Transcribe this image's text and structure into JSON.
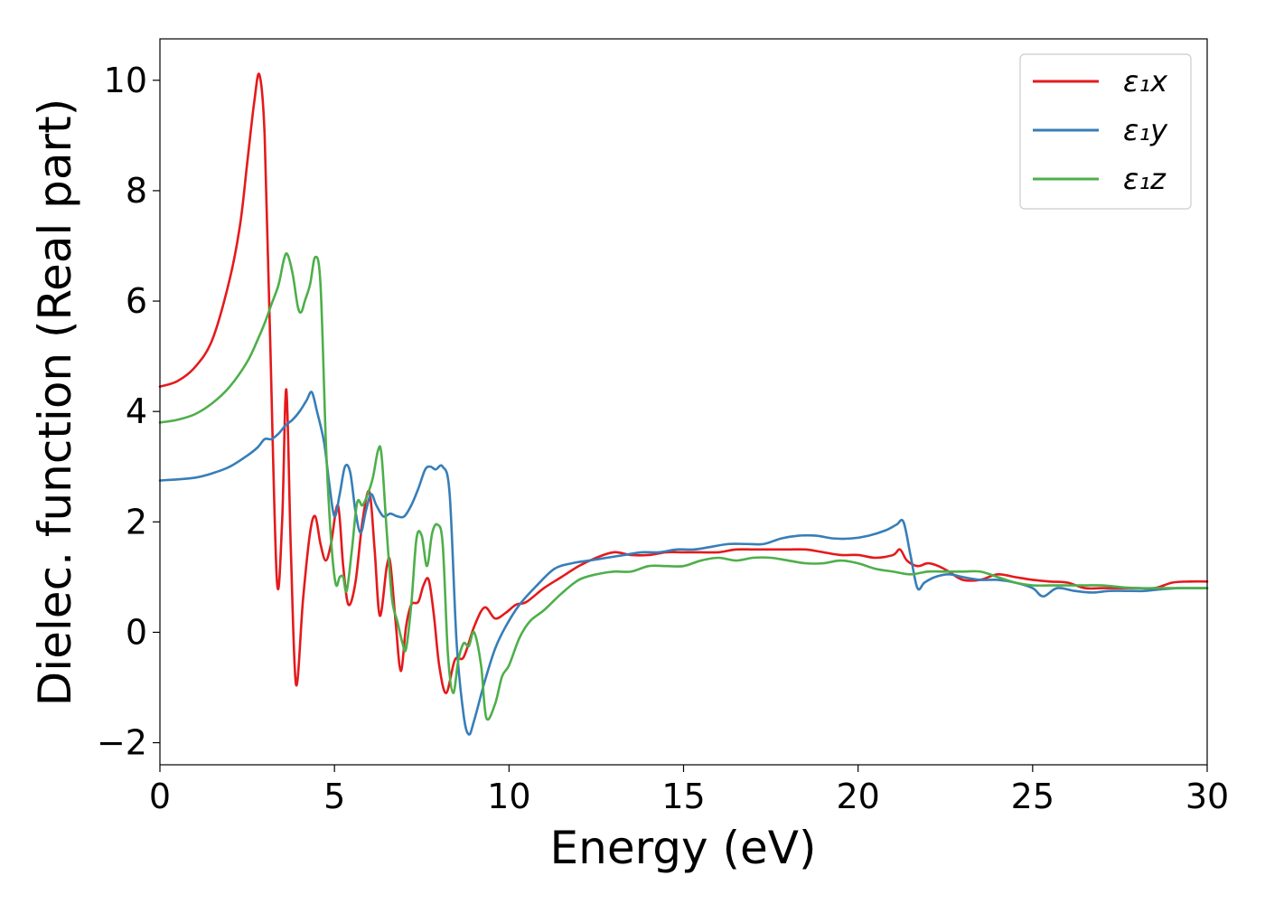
{
  "chart_data": {
    "type": "line",
    "title": "",
    "xlabel": "Energy (eV)",
    "ylabel": "Dielec. function (Real part)",
    "xlim": [
      0,
      30
    ],
    "ylim": [
      -2.4,
      10.75
    ],
    "xticks": [
      0,
      5,
      10,
      15,
      20,
      25,
      30
    ],
    "yticks": [
      -2,
      0,
      2,
      4,
      6,
      8,
      10
    ],
    "xtick_labels": [
      "0",
      "5",
      "10",
      "15",
      "20",
      "25",
      "30"
    ],
    "ytick_labels": [
      "−2",
      "0",
      "2",
      "4",
      "6",
      "8",
      "10"
    ],
    "grid": false,
    "legend_position": "top-right",
    "series": [
      {
        "name": "ε₁x",
        "color": "#e41a1c",
        "x": [
          0,
          0.5,
          1,
          1.5,
          2,
          2.3,
          2.5,
          2.7,
          2.85,
          3.0,
          3.15,
          3.35,
          3.5,
          3.62,
          3.75,
          3.9,
          4.1,
          4.3,
          4.45,
          4.6,
          4.75,
          4.9,
          5.1,
          5.25,
          5.4,
          5.6,
          5.8,
          6.0,
          6.15,
          6.3,
          6.5,
          6.6,
          6.75,
          6.9,
          7.05,
          7.2,
          7.4,
          7.55,
          7.7,
          7.85,
          8.0,
          8.2,
          8.45,
          8.7,
          9.0,
          9.3,
          9.6,
          9.9,
          10.2,
          10.5,
          11,
          11.5,
          12,
          12.5,
          13,
          13.5,
          14,
          14.5,
          15,
          15.5,
          16,
          16.5,
          17,
          17.5,
          18,
          18.5,
          19,
          19.5,
          20,
          20.5,
          21,
          21.2,
          21.4,
          21.7,
          22,
          22.3,
          22.6,
          23,
          23.5,
          24,
          24.5,
          25,
          25.5,
          26,
          26.5,
          27,
          27.5,
          28,
          28.5,
          29,
          29.5,
          30
        ],
        "y": [
          4.45,
          4.55,
          4.8,
          5.3,
          6.4,
          7.4,
          8.5,
          9.6,
          10.1,
          9.0,
          5.5,
          0.95,
          2.0,
          4.4,
          1.5,
          -0.95,
          0.6,
          1.8,
          2.1,
          1.6,
          1.3,
          1.6,
          2.3,
          1.2,
          0.5,
          0.9,
          2.0,
          2.55,
          1.5,
          0.3,
          1.2,
          1.25,
          0.2,
          -0.7,
          0.1,
          0.5,
          0.55,
          0.85,
          0.95,
          0.3,
          -0.6,
          -1.1,
          -0.5,
          -0.45,
          0.1,
          0.45,
          0.25,
          0.35,
          0.5,
          0.55,
          0.8,
          1.0,
          1.2,
          1.35,
          1.45,
          1.4,
          1.4,
          1.45,
          1.45,
          1.45,
          1.45,
          1.5,
          1.5,
          1.5,
          1.5,
          1.5,
          1.45,
          1.4,
          1.4,
          1.35,
          1.4,
          1.5,
          1.3,
          1.2,
          1.25,
          1.2,
          1.1,
          0.95,
          0.95,
          1.05,
          1.0,
          0.95,
          0.92,
          0.9,
          0.8,
          0.8,
          0.8,
          0.8,
          0.8,
          0.9,
          0.92,
          0.92
        ]
      },
      {
        "name": "ε₁y",
        "color": "#377eb8",
        "x": [
          0,
          0.5,
          1,
          1.5,
          2,
          2.5,
          2.8,
          3.0,
          3.2,
          3.4,
          3.6,
          3.8,
          4.0,
          4.2,
          4.35,
          4.5,
          4.7,
          4.85,
          5.0,
          5.15,
          5.3,
          5.45,
          5.6,
          5.75,
          5.9,
          6.05,
          6.2,
          6.4,
          6.6,
          6.8,
          7.0,
          7.2,
          7.4,
          7.6,
          7.75,
          7.9,
          8.1,
          8.3,
          8.5,
          8.7,
          8.85,
          9.0,
          9.3,
          9.6,
          9.9,
          10.3,
          10.8,
          11.3,
          11.8,
          12.3,
          12.8,
          13.3,
          13.8,
          14.3,
          14.8,
          15.3,
          15.8,
          16.3,
          16.8,
          17.3,
          17.8,
          18.3,
          18.8,
          19.3,
          19.8,
          20.3,
          20.8,
          21.1,
          21.3,
          21.5,
          21.7,
          21.9,
          22.2,
          22.6,
          23,
          23.5,
          24,
          24.5,
          25,
          25.3,
          25.7,
          26.2,
          26.7,
          27.2,
          27.7,
          28.2,
          28.7,
          29.2,
          29.7,
          30
        ],
        "y": [
          2.75,
          2.77,
          2.8,
          2.88,
          3.0,
          3.2,
          3.35,
          3.5,
          3.5,
          3.6,
          3.75,
          3.85,
          4.0,
          4.2,
          4.35,
          4.0,
          3.45,
          2.7,
          2.1,
          2.5,
          3.0,
          2.9,
          2.2,
          1.8,
          2.2,
          2.5,
          2.3,
          2.1,
          2.15,
          2.1,
          2.1,
          2.3,
          2.6,
          2.95,
          3.0,
          2.95,
          3.0,
          2.5,
          -0.2,
          -1.5,
          -1.85,
          -1.6,
          -0.9,
          -0.3,
          0.1,
          0.5,
          0.85,
          1.15,
          1.25,
          1.3,
          1.35,
          1.4,
          1.45,
          1.45,
          1.5,
          1.5,
          1.55,
          1.6,
          1.6,
          1.6,
          1.7,
          1.75,
          1.75,
          1.7,
          1.7,
          1.75,
          1.85,
          1.95,
          2.0,
          1.4,
          0.8,
          0.9,
          1.0,
          1.05,
          1.0,
          0.95,
          0.95,
          0.9,
          0.8,
          0.65,
          0.8,
          0.75,
          0.72,
          0.75,
          0.75,
          0.75,
          0.78,
          0.8,
          0.8,
          0.8
        ]
      },
      {
        "name": "ε₁z",
        "color": "#4daf4a",
        "x": [
          0,
          0.5,
          1,
          1.5,
          2,
          2.5,
          2.8,
          3.0,
          3.2,
          3.4,
          3.55,
          3.65,
          3.8,
          3.95,
          4.05,
          4.15,
          4.3,
          4.45,
          4.6,
          4.75,
          4.85,
          4.95,
          5.05,
          5.15,
          5.25,
          5.35,
          5.5,
          5.65,
          5.8,
          5.95,
          6.1,
          6.25,
          6.35,
          6.5,
          6.65,
          6.8,
          6.95,
          7.05,
          7.2,
          7.35,
          7.5,
          7.65,
          7.8,
          7.95,
          8.1,
          8.25,
          8.4,
          8.55,
          8.7,
          8.85,
          9.0,
          9.2,
          9.35,
          9.6,
          9.8,
          10.0,
          10.3,
          10.6,
          11.0,
          11.5,
          12,
          12.5,
          13,
          13.5,
          14,
          14.5,
          15,
          15.5,
          16,
          16.5,
          17,
          17.5,
          18,
          18.5,
          19,
          19.5,
          20,
          20.5,
          21,
          21.5,
          22,
          22.5,
          23,
          23.5,
          24,
          24.5,
          25,
          25.5,
          26,
          26.5,
          27,
          27.5,
          28,
          28.5,
          29,
          29.5,
          30
        ],
        "y": [
          3.8,
          3.85,
          3.95,
          4.15,
          4.45,
          4.9,
          5.3,
          5.6,
          5.95,
          6.3,
          6.75,
          6.85,
          6.5,
          5.9,
          5.8,
          6.0,
          6.3,
          6.8,
          6.3,
          3.5,
          2.2,
          1.3,
          0.85,
          1.0,
          1.0,
          0.75,
          1.5,
          2.35,
          2.3,
          2.5,
          2.8,
          3.3,
          3.2,
          1.8,
          0.6,
          0.2,
          -0.2,
          -0.3,
          0.5,
          1.7,
          1.75,
          1.2,
          1.8,
          1.95,
          1.6,
          -0.4,
          -1.1,
          -0.5,
          -0.2,
          -0.25,
          0.0,
          -0.6,
          -1.55,
          -1.3,
          -0.8,
          -0.6,
          -0.1,
          0.2,
          0.4,
          0.7,
          0.95,
          1.05,
          1.1,
          1.1,
          1.2,
          1.2,
          1.2,
          1.3,
          1.35,
          1.3,
          1.35,
          1.35,
          1.3,
          1.25,
          1.25,
          1.3,
          1.25,
          1.15,
          1.1,
          1.05,
          1.1,
          1.1,
          1.1,
          1.1,
          1.0,
          0.9,
          0.85,
          0.85,
          0.85,
          0.85,
          0.85,
          0.82,
          0.8,
          0.8,
          0.8,
          0.8,
          0.8
        ]
      }
    ]
  }
}
